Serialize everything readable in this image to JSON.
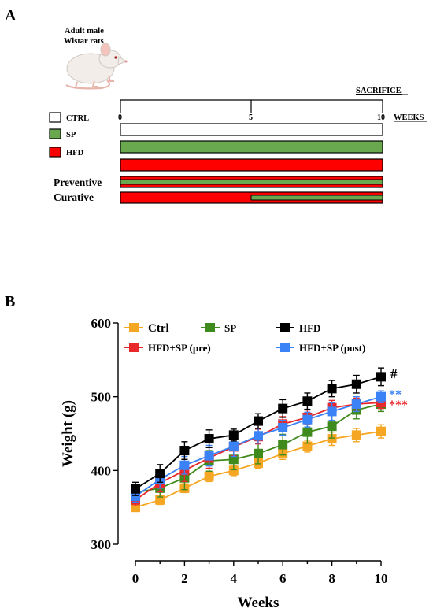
{
  "panel_a": {
    "label": "A",
    "animal_line1": "Adult male",
    "animal_line2": "Wistar rats",
    "sacrifice": "SACRIFICE",
    "weeks": "WEEKS",
    "ticks": [
      "0",
      "5",
      "10"
    ],
    "groups": [
      {
        "label": "CTRL",
        "color": "#ffffff"
      },
      {
        "label": "SP",
        "color": "#6aa84f"
      },
      {
        "label": "HFD",
        "color": "#ff0000"
      }
    ],
    "protocols": [
      "Preventive",
      "Curative"
    ],
    "colors": {
      "ctrl": "#ffffff",
      "sp": "#6aa84f",
      "hfd": "#ff0000"
    }
  },
  "panel_b": {
    "label": "B",
    "significance": [
      {
        "text": "#",
        "color": "#000000"
      },
      {
        "text": "**",
        "color": "#3b82f6"
      },
      {
        "text": "***",
        "color": "#e8282b"
      }
    ]
  },
  "chart_data": {
    "type": "line",
    "xlabel": "Weeks",
    "ylabel": "Weight (g)",
    "x": [
      0,
      1,
      2,
      3,
      4,
      5,
      6,
      7,
      8,
      9,
      10
    ],
    "xticks": [
      0,
      2,
      4,
      6,
      8,
      10
    ],
    "yticks": [
      300,
      400,
      500,
      600
    ],
    "xlim": [
      0,
      10
    ],
    "ylim": [
      300,
      600
    ],
    "grid": false,
    "legend_position": "top",
    "series": [
      {
        "name": "Ctrl",
        "color": "#f5a623",
        "marker": "square",
        "values": [
          350,
          360,
          376,
          392,
          400,
          410,
          423,
          433,
          443,
          448,
          453
        ],
        "err": [
          5,
          6,
          6,
          7,
          7,
          7,
          8,
          8,
          9,
          9,
          9
        ]
      },
      {
        "name": "SP",
        "color": "#3f8a1c",
        "marker": "square",
        "values": [
          370,
          376,
          390,
          413,
          415,
          423,
          435,
          452,
          460,
          482,
          490
        ],
        "err": [
          8,
          12,
          16,
          14,
          14,
          14,
          14,
          15,
          16,
          12,
          10
        ]
      },
      {
        "name": "HFD",
        "color": "#000000",
        "marker": "square",
        "values": [
          375,
          396,
          427,
          443,
          448,
          467,
          484,
          494,
          511,
          517,
          527
        ],
        "err": [
          9,
          12,
          12,
          12,
          8,
          10,
          12,
          11,
          11,
          12,
          12
        ]
      },
      {
        "name": "HFD+SP (pre)",
        "color": "#e8282b",
        "marker": "square",
        "values": [
          360,
          383,
          400,
          417,
          432,
          446,
          463,
          472,
          485,
          490,
          492
        ],
        "err": [
          8,
          12,
          15,
          14,
          12,
          10,
          10,
          10,
          10,
          8,
          8
        ]
      },
      {
        "name": "HFD+SP (post)",
        "color": "#3b82f6",
        "marker": "square",
        "values": [
          365,
          388,
          407,
          420,
          433,
          447,
          458,
          469,
          480,
          490,
          500
        ],
        "err": [
          8,
          12,
          12,
          14,
          14,
          10,
          10,
          10,
          12,
          10,
          8
        ]
      }
    ]
  }
}
